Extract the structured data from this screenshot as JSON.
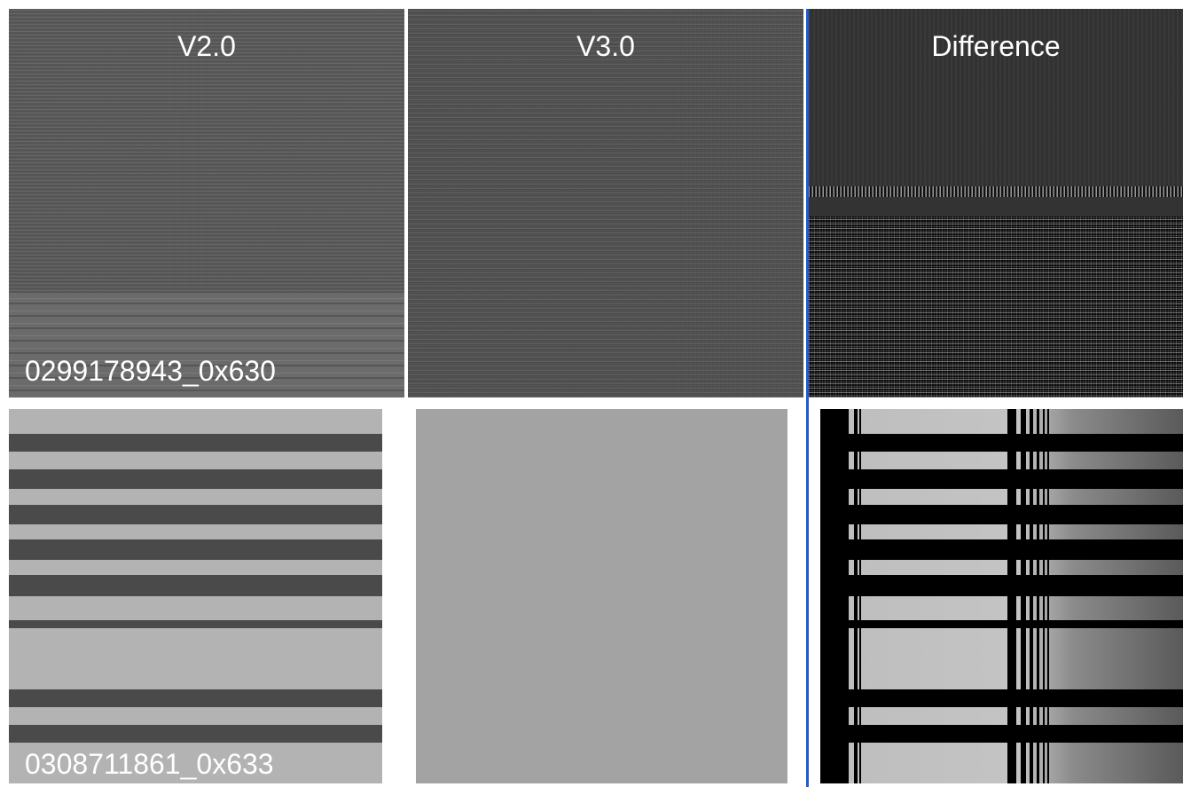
{
  "columns": {
    "v2_title": "V2.0",
    "v3_title": "V3.0",
    "diff_title": "Difference"
  },
  "rows": [
    {
      "id_label": "0299178943_0x630"
    },
    {
      "id_label": "0308711861_0x633"
    }
  ],
  "colors": {
    "divider": "#1f5bd6",
    "stripe_dark": "#4a4a4a",
    "stripe_light": "#b3b3b3",
    "flat_gray": "#a3a3a3"
  }
}
